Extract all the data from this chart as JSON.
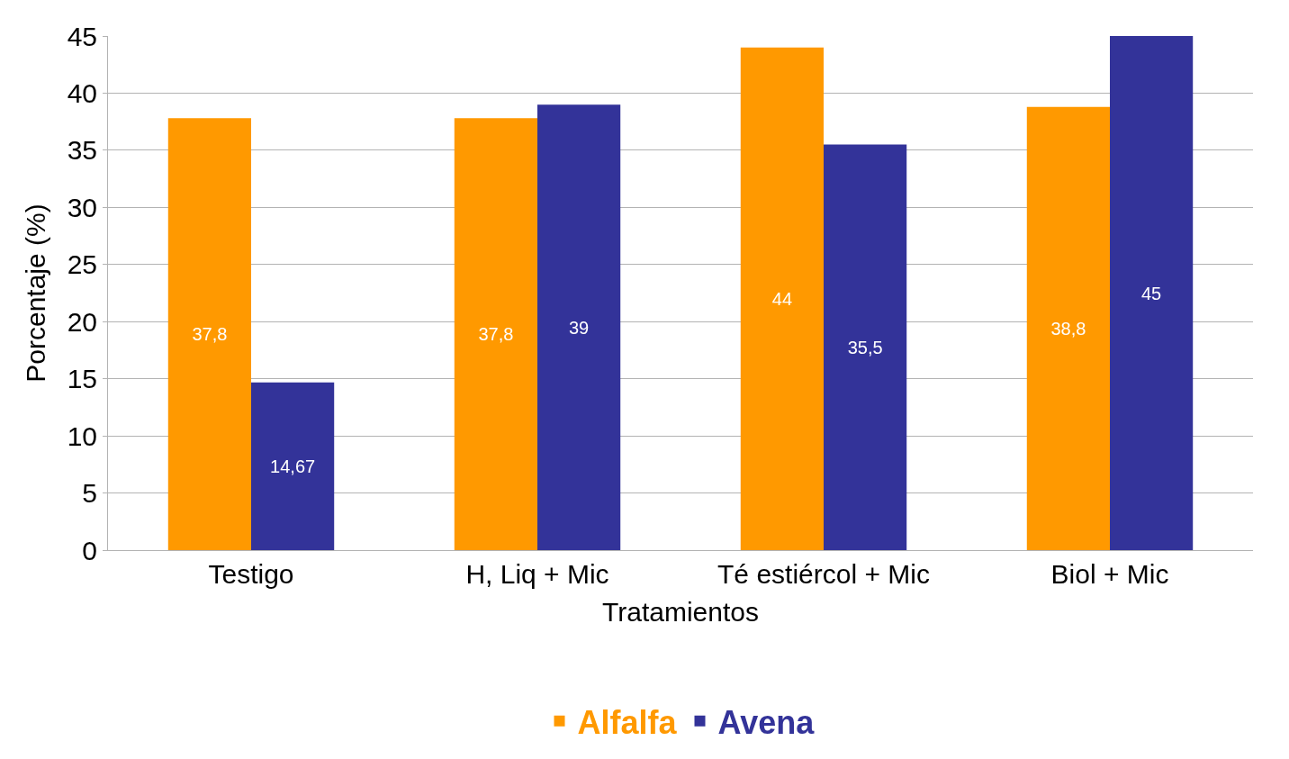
{
  "chart_data": {
    "type": "bar",
    "xlabel": "Tratamientos",
    "ylabel": "Porcentaje (%)",
    "categories": [
      "Testigo",
      "H, Liq + Mic",
      "Té estiércol + Mic",
      "Biol + Mic"
    ],
    "series": [
      {
        "name": "Alfalfa",
        "color": "#ff9900",
        "values": [
          37.8,
          37.8,
          44,
          38.8
        ],
        "value_labels": [
          "37,8",
          "37,8",
          "44",
          "38,8"
        ]
      },
      {
        "name": "Avena",
        "color": "#333399",
        "values": [
          14.67,
          39,
          35.5,
          45
        ],
        "value_labels": [
          "14,67",
          "39",
          "35,5",
          "45"
        ]
      }
    ],
    "ylim": [
      0,
      45
    ],
    "yticks": [
      0,
      5,
      10,
      15,
      20,
      25,
      30,
      35,
      40,
      45
    ],
    "grid": "y",
    "legend": "bottom"
  }
}
